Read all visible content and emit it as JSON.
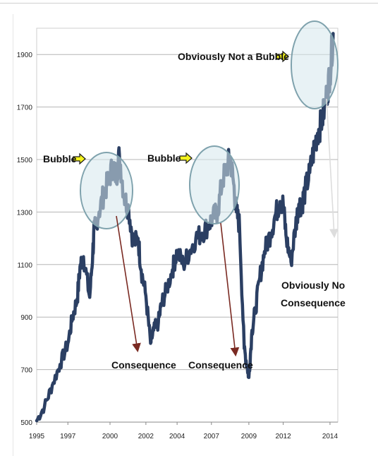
{
  "chart_data": {
    "type": "line",
    "title": "",
    "xlabel": "",
    "ylabel": "",
    "ylim": [
      500,
      2000
    ],
    "y_ticks": [
      500,
      700,
      900,
      1100,
      1300,
      1500,
      1700,
      1900
    ],
    "x_ticks": [
      {
        "label": "1995",
        "year": 1995.0
      },
      {
        "label": "1997",
        "year": 1997.0
      },
      {
        "label": "2000",
        "year": 1999.7
      },
      {
        "label": "2002",
        "year": 2002.0
      },
      {
        "label": "2004",
        "year": 2004.0
      },
      {
        "label": "2007",
        "year": 2006.2
      },
      {
        "label": "2009",
        "year": 2008.6
      },
      {
        "label": "2012",
        "year": 2010.8
      },
      {
        "label": "2014",
        "year": 2013.8
      }
    ],
    "xlim": [
      1995.0,
      2014.3
    ],
    "grid": true,
    "series": [
      {
        "x": [
          1995.0,
          1995.5,
          1996.0,
          1996.5,
          1997.0,
          1997.3,
          1997.6,
          1997.8,
          1998.0,
          1998.4,
          1998.6,
          1998.7,
          1999.0,
          1999.3,
          1999.6,
          1999.9,
          2000.1,
          2000.3,
          2000.6,
          2000.9,
          2001.2,
          2001.5,
          2001.7,
          2002.0,
          2002.3,
          2002.5,
          2002.8,
          2003.0,
          2003.3,
          2003.7,
          2004.0,
          2004.4,
          2004.8,
          2005.2,
          2005.6,
          2006.0,
          2006.3,
          2006.6,
          2006.9,
          2007.2,
          2007.4,
          2007.6,
          2007.8,
          2008.0,
          2008.3,
          2008.5,
          2008.6,
          2008.8,
          2009.0,
          2009.3,
          2009.6,
          2010.0,
          2010.3,
          2010.6,
          2010.8,
          2011.0,
          2011.3,
          2011.6,
          2011.8,
          2012.0,
          2012.2,
          2012.5,
          2012.8,
          2013.0,
          2013.3,
          2013.6,
          2013.8,
          2014.0
        ],
        "values": [
          505,
          560,
          640,
          720,
          800,
          900,
          970,
          1100,
          1130,
          975,
          1150,
          1240,
          1300,
          1370,
          1420,
          1480,
          1430,
          1520,
          1360,
          1310,
          1180,
          1200,
          1080,
          980,
          800,
          850,
          880,
          950,
          1000,
          1080,
          1150,
          1100,
          1150,
          1200,
          1220,
          1250,
          1280,
          1300,
          1420,
          1470,
          1510,
          1420,
          1300,
          1250,
          780,
          710,
          670,
          850,
          920,
          1050,
          1150,
          1220,
          1290,
          1340,
          1330,
          1200,
          1110,
          1250,
          1330,
          1330,
          1380,
          1450,
          1550,
          1600,
          1650,
          1750,
          1830,
          1980
        ]
      }
    ],
    "annotations": [
      {
        "text": "Bubble",
        "year": 2000.0,
        "value": 1420
      },
      {
        "text": "Bubble",
        "year": 2006.8,
        "value": 1430
      },
      {
        "text": "Obviously Not a Bubble",
        "year": 2013.4,
        "value": 1890
      },
      {
        "text": "Consequence",
        "year": 2002.0,
        "value": 780
      },
      {
        "text": "Consequence",
        "year": 2008.0,
        "value": 760
      },
      {
        "text": "Obviously No",
        "year": 2012.3,
        "value": 1150
      },
      {
        "text": "Consequence",
        "year": 2012.3,
        "value": 1150
      }
    ],
    "colors": {
      "line": "#2b3f63",
      "grid": "#b5b5b5",
      "bubble_fill": "#d6e8ec",
      "bubble_stroke": "#7fa2ad",
      "arrow_dark": "#7a2a22",
      "arrow_light": "#dddddd",
      "highlight_arrow": "#f4f31d"
    }
  }
}
